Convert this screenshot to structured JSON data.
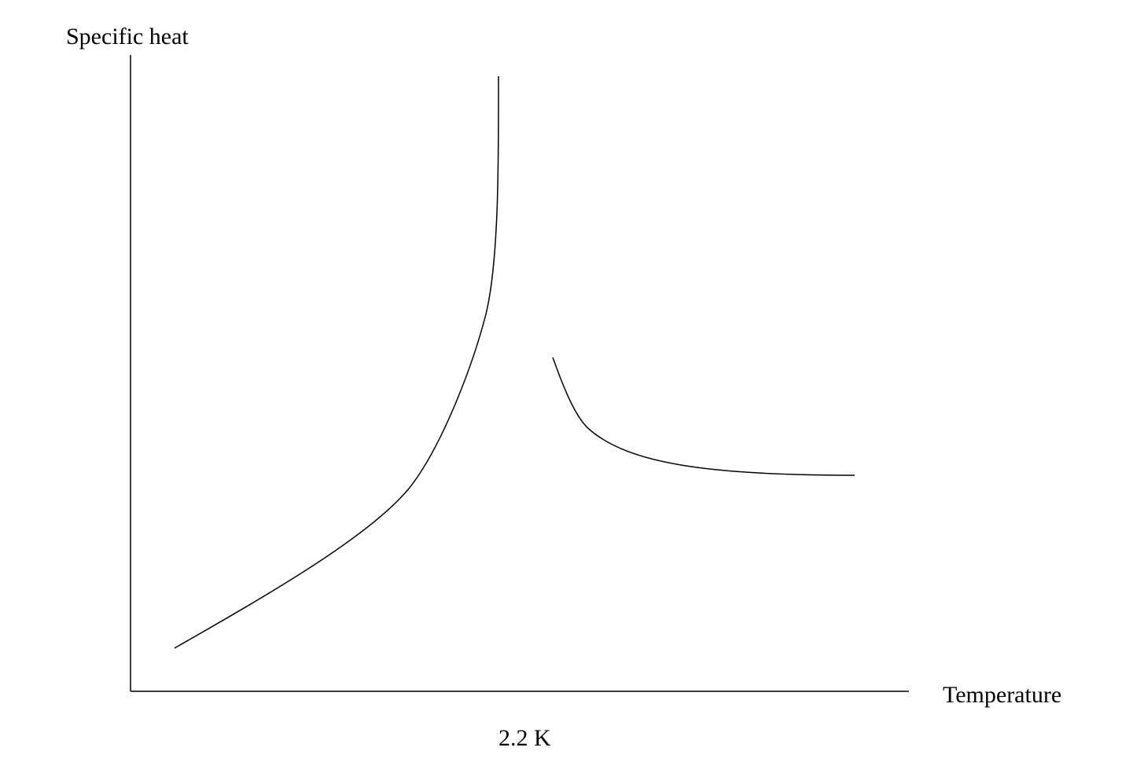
{
  "axes": {
    "y_label": "Specific heat",
    "x_label": "Temperature"
  },
  "annotations": {
    "transition": "2.2 K"
  }
}
